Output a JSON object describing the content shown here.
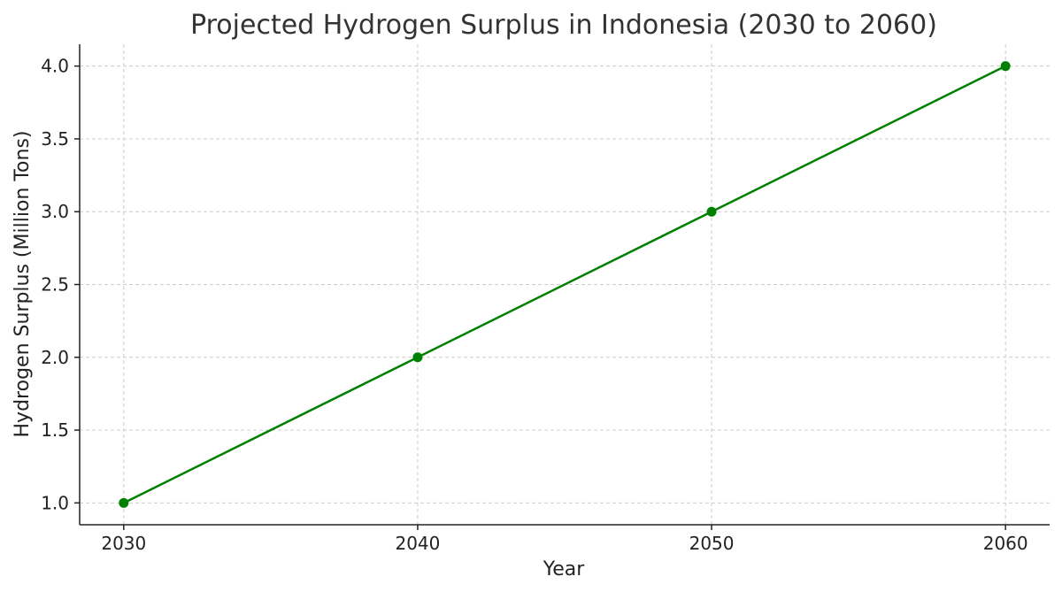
{
  "chart_data": {
    "type": "line",
    "title": "Projected Hydrogen Surplus in Indonesia (2030 to 2060)",
    "xlabel": "Year",
    "ylabel": "Hydrogen Surplus (Million Tons)",
    "x": [
      2030,
      2040,
      2050,
      2060
    ],
    "x_tick_labels": [
      "2030",
      "2040",
      "2050",
      "2060"
    ],
    "y_ticks": [
      1.0,
      1.5,
      2.0,
      2.5,
      3.0,
      3.5,
      4.0
    ],
    "y_tick_labels": [
      "1.0",
      "1.5",
      "2.0",
      "2.5",
      "3.0",
      "3.5",
      "4.0"
    ],
    "xlim": [
      2028.5,
      2061.5
    ],
    "ylim": [
      0.85,
      4.15
    ],
    "grid": true,
    "series": [
      {
        "values": [
          1.0,
          2.0,
          3.0,
          4.0
        ],
        "color": "#008000",
        "marker": "circle"
      }
    ]
  }
}
